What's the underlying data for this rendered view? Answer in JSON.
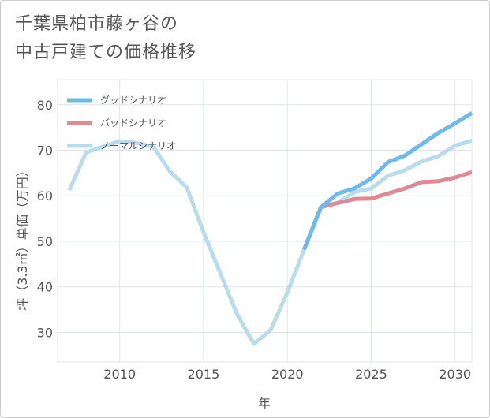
{
  "title": {
    "line1": "千葉県柏市藤ヶ谷の",
    "line2": "中古戸建ての価格推移"
  },
  "chart_data": {
    "type": "line",
    "xlabel": "年",
    "ylabel": "坪（3.3㎡）単価（万円）",
    "xlim": [
      2006.3,
      2031
    ],
    "ylim": [
      23.5,
      85.5
    ],
    "xticks": [
      2010,
      2015,
      2020,
      2025,
      2030
    ],
    "yticks": [
      30,
      40,
      50,
      60,
      70,
      80
    ],
    "grid": true,
    "legend_position": "top-left",
    "series": [
      {
        "name": "グッドシナリオ",
        "color": "#6dbaec",
        "x": [
          2021,
          2022,
          2023,
          2024,
          2025,
          2026,
          2027,
          2028,
          2029,
          2030,
          2031
        ],
        "y": [
          48.2,
          57.5,
          60.5,
          61.6,
          63.8,
          67.4,
          68.8,
          71.3,
          73.8,
          75.9,
          78.2
        ]
      },
      {
        "name": "バッドシナリオ",
        "color": "#de8a94",
        "x": [
          2021,
          2022,
          2023,
          2024,
          2025,
          2026,
          2027,
          2028,
          2029,
          2030,
          2031
        ],
        "y": [
          48.2,
          57.5,
          58.4,
          59.3,
          59.4,
          60.5,
          61.6,
          63.0,
          63.2,
          64.0,
          65.2
        ]
      },
      {
        "name": "ノーマルシナリオ",
        "color": "#b9dcec",
        "x": [
          2007,
          2008,
          2009,
          2010,
          2011,
          2012,
          2013,
          2014,
          2015,
          2016,
          2017,
          2018,
          2019,
          2020,
          2021,
          2022,
          2023,
          2024,
          2025,
          2026,
          2027,
          2028,
          2029,
          2030,
          2031
        ],
        "y": [
          61.2,
          69.5,
          70.8,
          72.0,
          71.6,
          70.8,
          65.3,
          61.8,
          52.0,
          43.0,
          34.0,
          27.5,
          30.5,
          38.8,
          48.2,
          57.5,
          58.5,
          60.8,
          61.6,
          64.4,
          65.6,
          67.5,
          68.7,
          71.0,
          72.1
        ]
      }
    ]
  }
}
